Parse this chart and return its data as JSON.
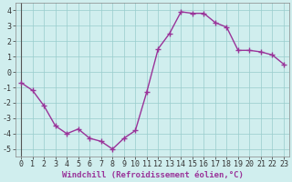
{
  "x": [
    0,
    1,
    2,
    3,
    4,
    5,
    6,
    7,
    8,
    9,
    10,
    11,
    12,
    13,
    14,
    15,
    16,
    17,
    18,
    19,
    20,
    21,
    22,
    23
  ],
  "y": [
    -0.7,
    -1.2,
    -2.2,
    -3.5,
    -4.0,
    -3.7,
    -4.3,
    -4.5,
    -5.0,
    -4.3,
    -3.8,
    -1.3,
    1.5,
    2.5,
    3.9,
    3.8,
    3.8,
    3.2,
    2.9,
    1.4,
    1.4,
    1.3,
    1.1,
    0.5
  ],
  "line_color": "#993399",
  "marker": "+",
  "bg_color": "#d0eeee",
  "grid_color": "#99cccc",
  "xlabel": "Windchill (Refroidissement éolien,°C)",
  "xlim": [
    -0.5,
    23.5
  ],
  "ylim": [
    -5.5,
    4.5
  ],
  "xticks": [
    0,
    1,
    2,
    3,
    4,
    5,
    6,
    7,
    8,
    9,
    10,
    11,
    12,
    13,
    14,
    15,
    16,
    17,
    18,
    19,
    20,
    21,
    22,
    23
  ],
  "yticks": [
    -5,
    -4,
    -3,
    -2,
    -1,
    0,
    1,
    2,
    3,
    4
  ],
  "xlabel_color": "#993399",
  "tick_color": "#333333",
  "axis_label_fontsize": 6.5,
  "tick_fontsize": 6,
  "linewidth": 1.0,
  "markersize": 4,
  "markeredgewidth": 1.0
}
